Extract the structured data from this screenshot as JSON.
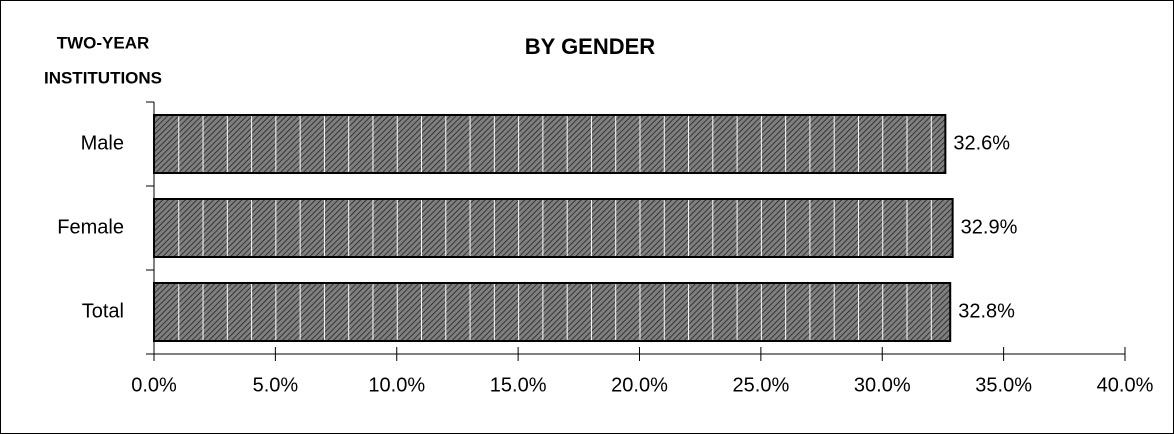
{
  "chart_data": {
    "type": "bar",
    "orientation": "horizontal",
    "title": "BY GENDER",
    "annotations": [
      "TWO-YEAR",
      "INSTITUTIONS"
    ],
    "categories": [
      "Male",
      "Female",
      "Total"
    ],
    "values": [
      32.6,
      32.9,
      32.8
    ],
    "value_labels": [
      "32.6%",
      "32.9%",
      "32.8%"
    ],
    "color": "#7f7f7f",
    "xlim": [
      0,
      40
    ],
    "xticks": [
      {
        "value": 0,
        "label": "0.0%"
      },
      {
        "value": 5,
        "label": "5.0%"
      },
      {
        "value": 10,
        "label": "10.0%"
      },
      {
        "value": 15,
        "label": "15.0%"
      },
      {
        "value": 20,
        "label": "20.0%"
      },
      {
        "value": 25,
        "label": "25.0%"
      },
      {
        "value": 30,
        "label": "30.0%"
      },
      {
        "value": 35,
        "label": "35.0%"
      },
      {
        "value": 40,
        "label": "40.0%"
      }
    ],
    "grid": false
  }
}
